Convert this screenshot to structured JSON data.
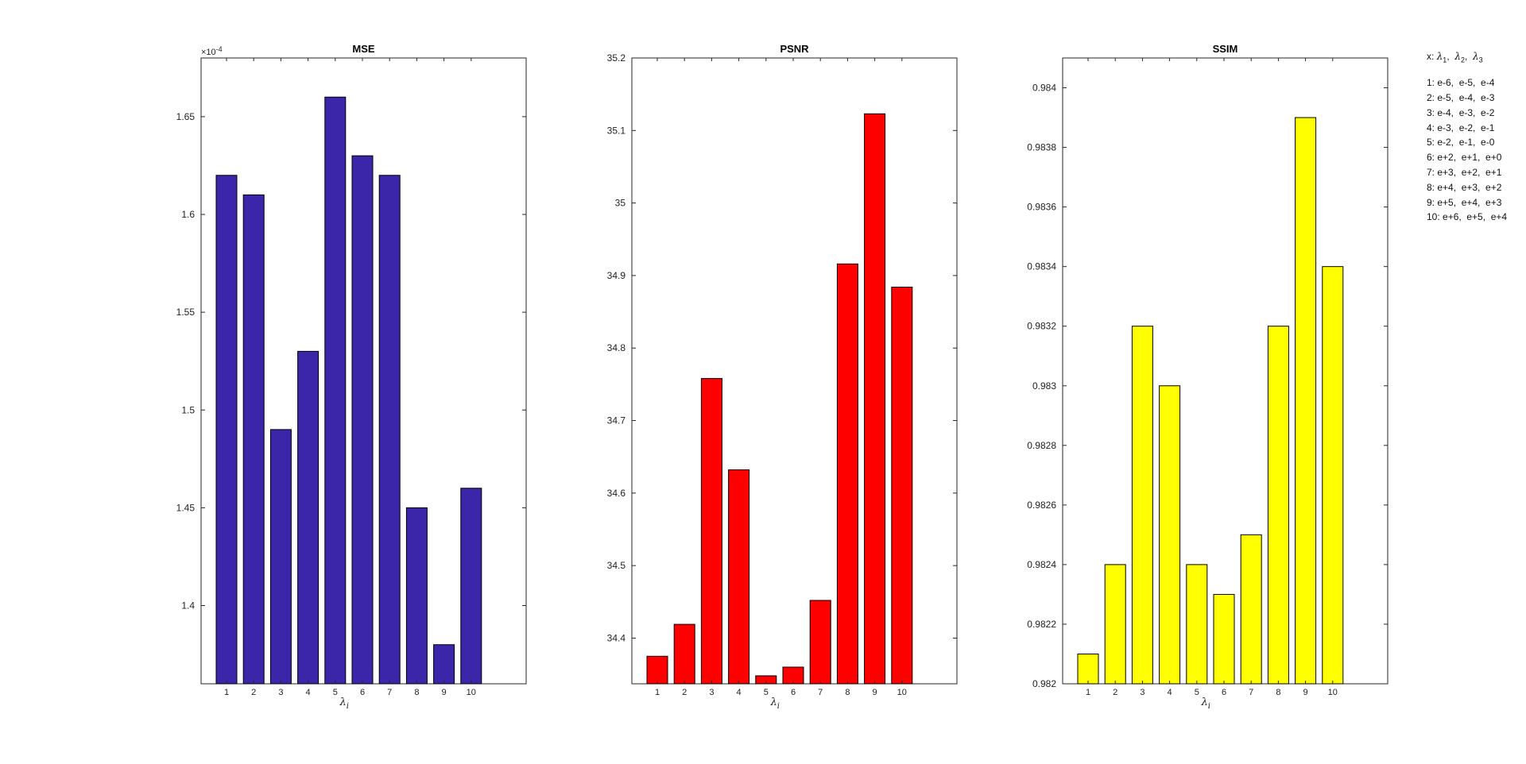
{
  "chart_data": [
    {
      "type": "bar",
      "title": "MSE",
      "xlabel": "λi",
      "ylabel": "",
      "categories": [
        "1",
        "2",
        "3",
        "4",
        "5",
        "6",
        "7",
        "8",
        "9",
        "10"
      ],
      "values": [
        0.000162,
        0.000161,
        0.000149,
        0.000153,
        0.000166,
        0.000163,
        0.000162,
        0.000145,
        0.000138,
        0.000146
      ],
      "ylim": [
        0.000136,
        0.000168
      ],
      "yticks": [
        "1.4",
        "1.45",
        "1.5",
        "1.55",
        "1.6",
        "1.65"
      ],
      "y_exponent_label": "×10^-4",
      "color": "#3b25a8",
      "grid": false
    },
    {
      "type": "bar",
      "title": "PSNR",
      "xlabel": "λi",
      "ylabel": "",
      "categories": [
        "1",
        "2",
        "3",
        "4",
        "5",
        "6",
        "7",
        "8",
        "9",
        "10"
      ],
      "values": [
        34.375,
        34.419,
        34.758,
        34.632,
        34.348,
        34.36,
        34.452,
        34.916,
        35.123,
        34.884
      ],
      "ylim": [
        34.337,
        35.2
      ],
      "yticks": [
        "34.4",
        "34.5",
        "34.6",
        "34.7",
        "34.8",
        "34.9",
        "35",
        "35.1",
        "35.2"
      ],
      "color": "#ff0000",
      "grid": false
    },
    {
      "type": "bar",
      "title": "SSIM",
      "xlabel": "λi",
      "ylabel": "",
      "categories": [
        "1",
        "2",
        "3",
        "4",
        "5",
        "6",
        "7",
        "8",
        "9",
        "10"
      ],
      "values": [
        0.9821,
        0.9824,
        0.9832,
        0.983,
        0.9824,
        0.9823,
        0.9825,
        0.9832,
        0.9839,
        0.9834
      ],
      "ylim": [
        0.982,
        0.9841
      ],
      "yticks": [
        "0.982",
        "0.9822",
        "0.9824",
        "0.9826",
        "0.9828",
        "0.983",
        "0.9832",
        "0.9834",
        "0.9836",
        "0.9838",
        "0.984"
      ],
      "color": "#ffff00",
      "grid": false
    }
  ],
  "legend": {
    "header": {
      "prefix": "x:",
      "symbol": "λ",
      "subs": [
        "1",
        "2",
        "3"
      ]
    },
    "rows": [
      "1: e-6,  e-5,  e-4",
      "2: e-5,  e-4,  e-3",
      "3: e-4,  e-3,  e-2",
      "4: e-3,  e-2,  e-1",
      "5: e-2,  e-1,  e-0",
      "6: e+2,  e+1,  e+0",
      "7: e+3,  e+2,  e+1",
      "8: e+4,  e+3,  e+2",
      "9: e+5,  e+4,  e+3",
      "10: e+6,  e+5,  e+4"
    ]
  }
}
